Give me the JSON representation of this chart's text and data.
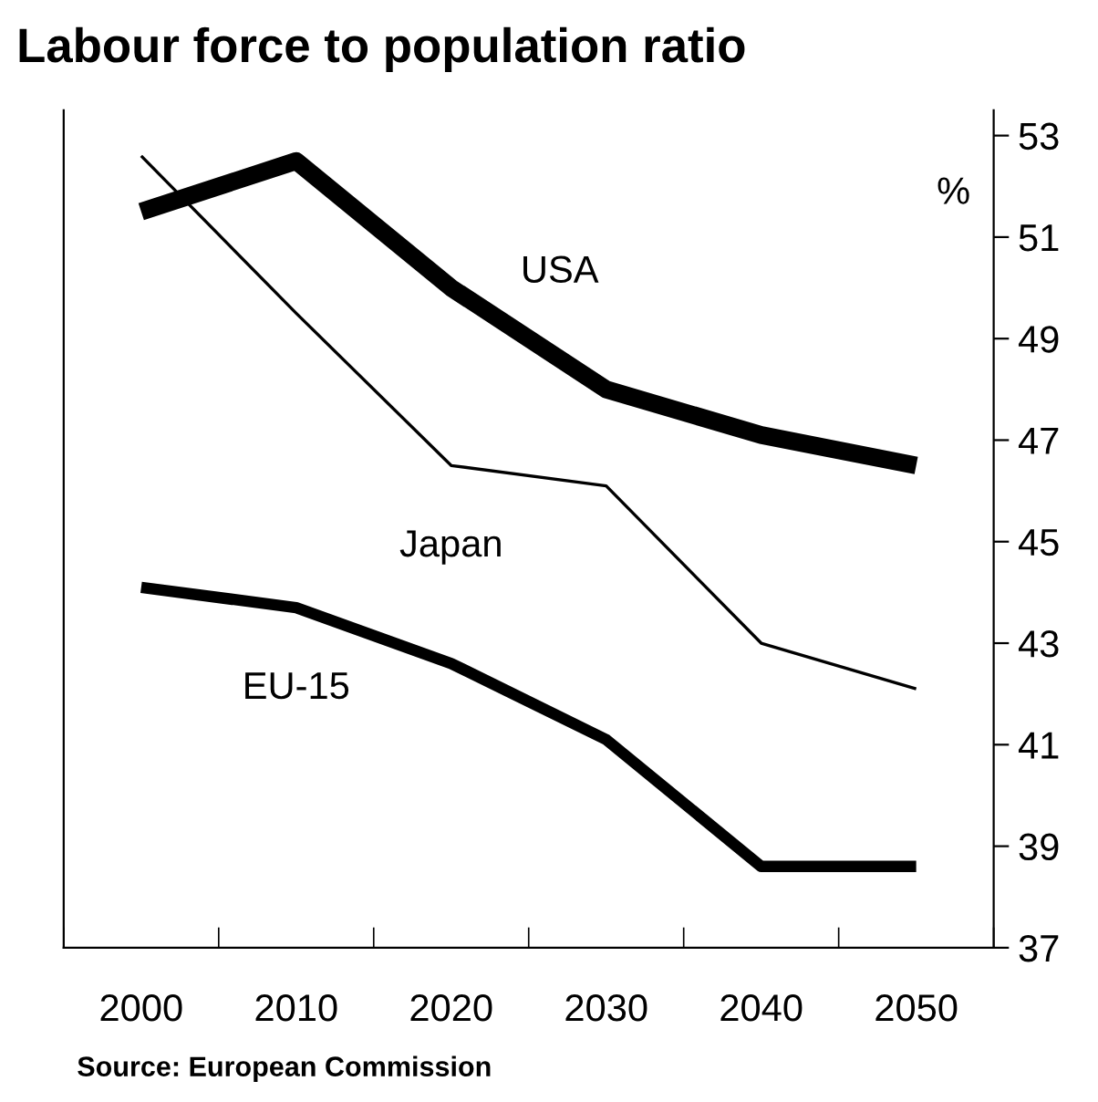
{
  "chart_data": {
    "type": "line",
    "title": "Labour force to population ratio",
    "ylabel": "%",
    "categories": [
      "2000",
      "2010",
      "2020",
      "2030",
      "2040",
      "2050"
    ],
    "series": [
      {
        "name": "USA",
        "color": "#000000",
        "values": [
          51.5,
          52.5,
          50.0,
          48.0,
          47.1,
          46.5
        ]
      },
      {
        "name": "Japan",
        "color": "#000000",
        "values": [
          52.6,
          49.5,
          46.5,
          46.1,
          43.0,
          42.1
        ]
      },
      {
        "name": "EU-15",
        "color": "#000000",
        "values": [
          44.1,
          43.7,
          42.6,
          41.1,
          38.6,
          38.6
        ]
      }
    ],
    "ylim": [
      37,
      53.5
    ],
    "yticks": [
      37,
      39,
      41,
      43,
      45,
      47,
      49,
      51,
      53
    ],
    "grid": false,
    "legend": false,
    "marker": "none",
    "line_style": "solid",
    "annotations": [
      "Source: European Commission"
    ]
  }
}
